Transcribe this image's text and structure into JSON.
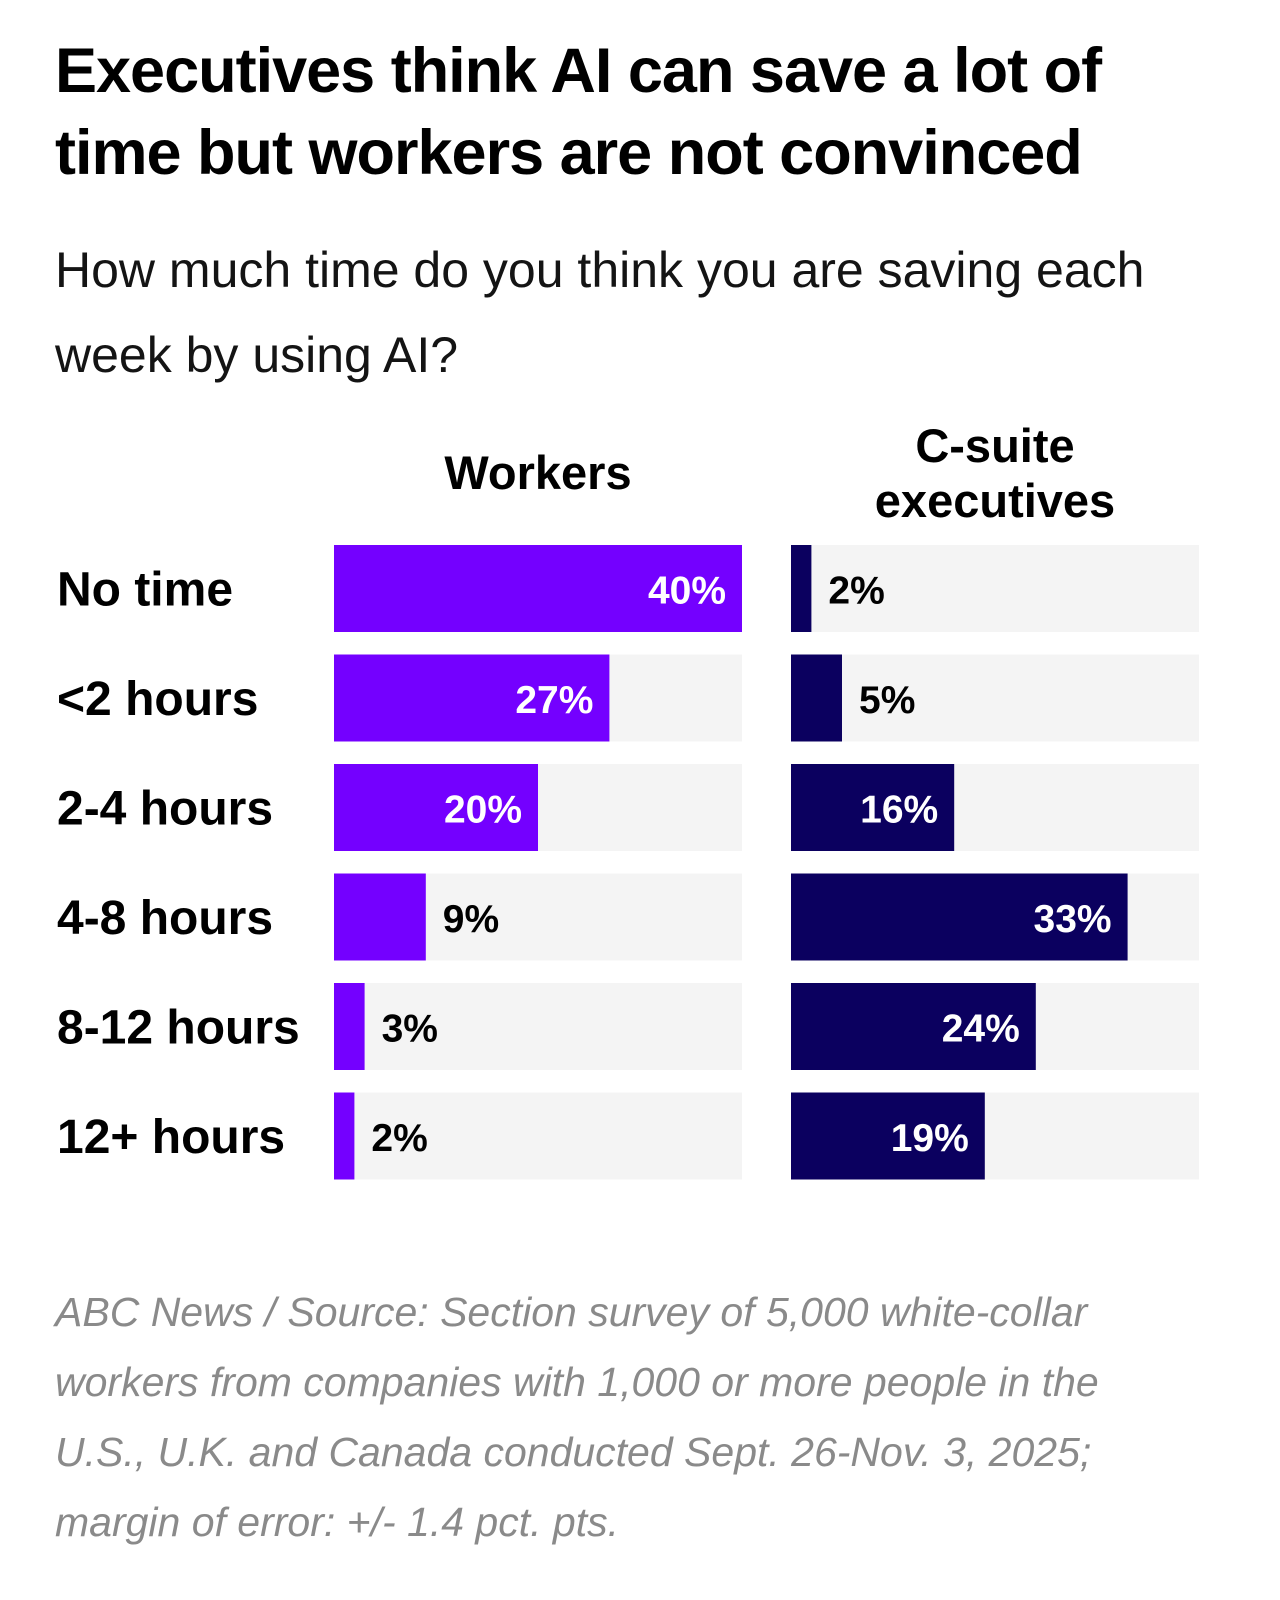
{
  "title": "Executives think AI can save a lot of time but workers are not convinced",
  "subtitle": "How much time do you think you are saving each week by using AI?",
  "source": "ABC News / Source: Section survey of 5,000 white-collar workers from companies with 1,000 or more people in the U.S., U.K. and Canada conducted Sept. 26-Nov. 3, 2025; margin of error: +/- 1.4 pct. pts.",
  "colors": {
    "workers": "#7400ff",
    "executives": "#0b005f",
    "track": "#f4f4f4",
    "label_inside": "#ffffff",
    "label_outside": "#000000"
  },
  "chart_data": {
    "type": "bar",
    "orientation": "horizontal",
    "layout": "small-multiples",
    "title": "Executives think AI can save a lot of time but workers are not convinced",
    "subtitle": "How much time do you think you are saving each week by using AI?",
    "categories": [
      "No time",
      "<2 hours",
      "2-4 hours",
      "4-8 hours",
      "8-12 hours",
      "12+ hours"
    ],
    "unit": "%",
    "xlim": [
      0,
      40
    ],
    "series": [
      {
        "name": "Workers",
        "values": [
          40,
          27,
          20,
          9,
          3,
          2
        ]
      },
      {
        "name": "C-suite executives",
        "values": [
          2,
          5,
          16,
          33,
          24,
          19
        ]
      }
    ]
  }
}
